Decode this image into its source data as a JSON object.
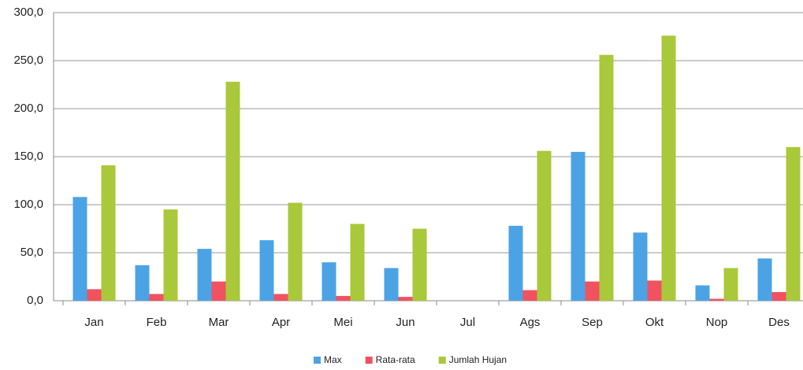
{
  "chart_data": {
    "type": "bar",
    "categories": [
      "Jan",
      "Feb",
      "Mar",
      "Apr",
      "Mei",
      "Jun",
      "Jul",
      "Ags",
      "Sep",
      "Okt",
      "Nop",
      "Des"
    ],
    "series": [
      {
        "name": "Max",
        "color": "#4ba3e6",
        "values": [
          108,
          37,
          54,
          63,
          40,
          34,
          0,
          78,
          155,
          71,
          16,
          44
        ]
      },
      {
        "name": "Rata-rata",
        "color": "#f0525f",
        "values": [
          12,
          7,
          20,
          7,
          5,
          4,
          0,
          11,
          20,
          21,
          2,
          9
        ]
      },
      {
        "name": "Jumlah Hujan",
        "color": "#a9c83a",
        "values": [
          141,
          95,
          228,
          102,
          80,
          75,
          0,
          156,
          256,
          276,
          34,
          160
        ]
      }
    ],
    "ylim": [
      0,
      300
    ],
    "yticks": [
      {
        "value": 0,
        "label": "0,0"
      },
      {
        "value": 50,
        "label": "50,0"
      },
      {
        "value": 100,
        "label": "100,0"
      },
      {
        "value": 150,
        "label": "150,0"
      },
      {
        "value": 200,
        "label": "200,0"
      },
      {
        "value": 250,
        "label": "250,0"
      },
      {
        "value": 300,
        "label": "300,0"
      }
    ],
    "grid": true,
    "legend": "bottom"
  }
}
